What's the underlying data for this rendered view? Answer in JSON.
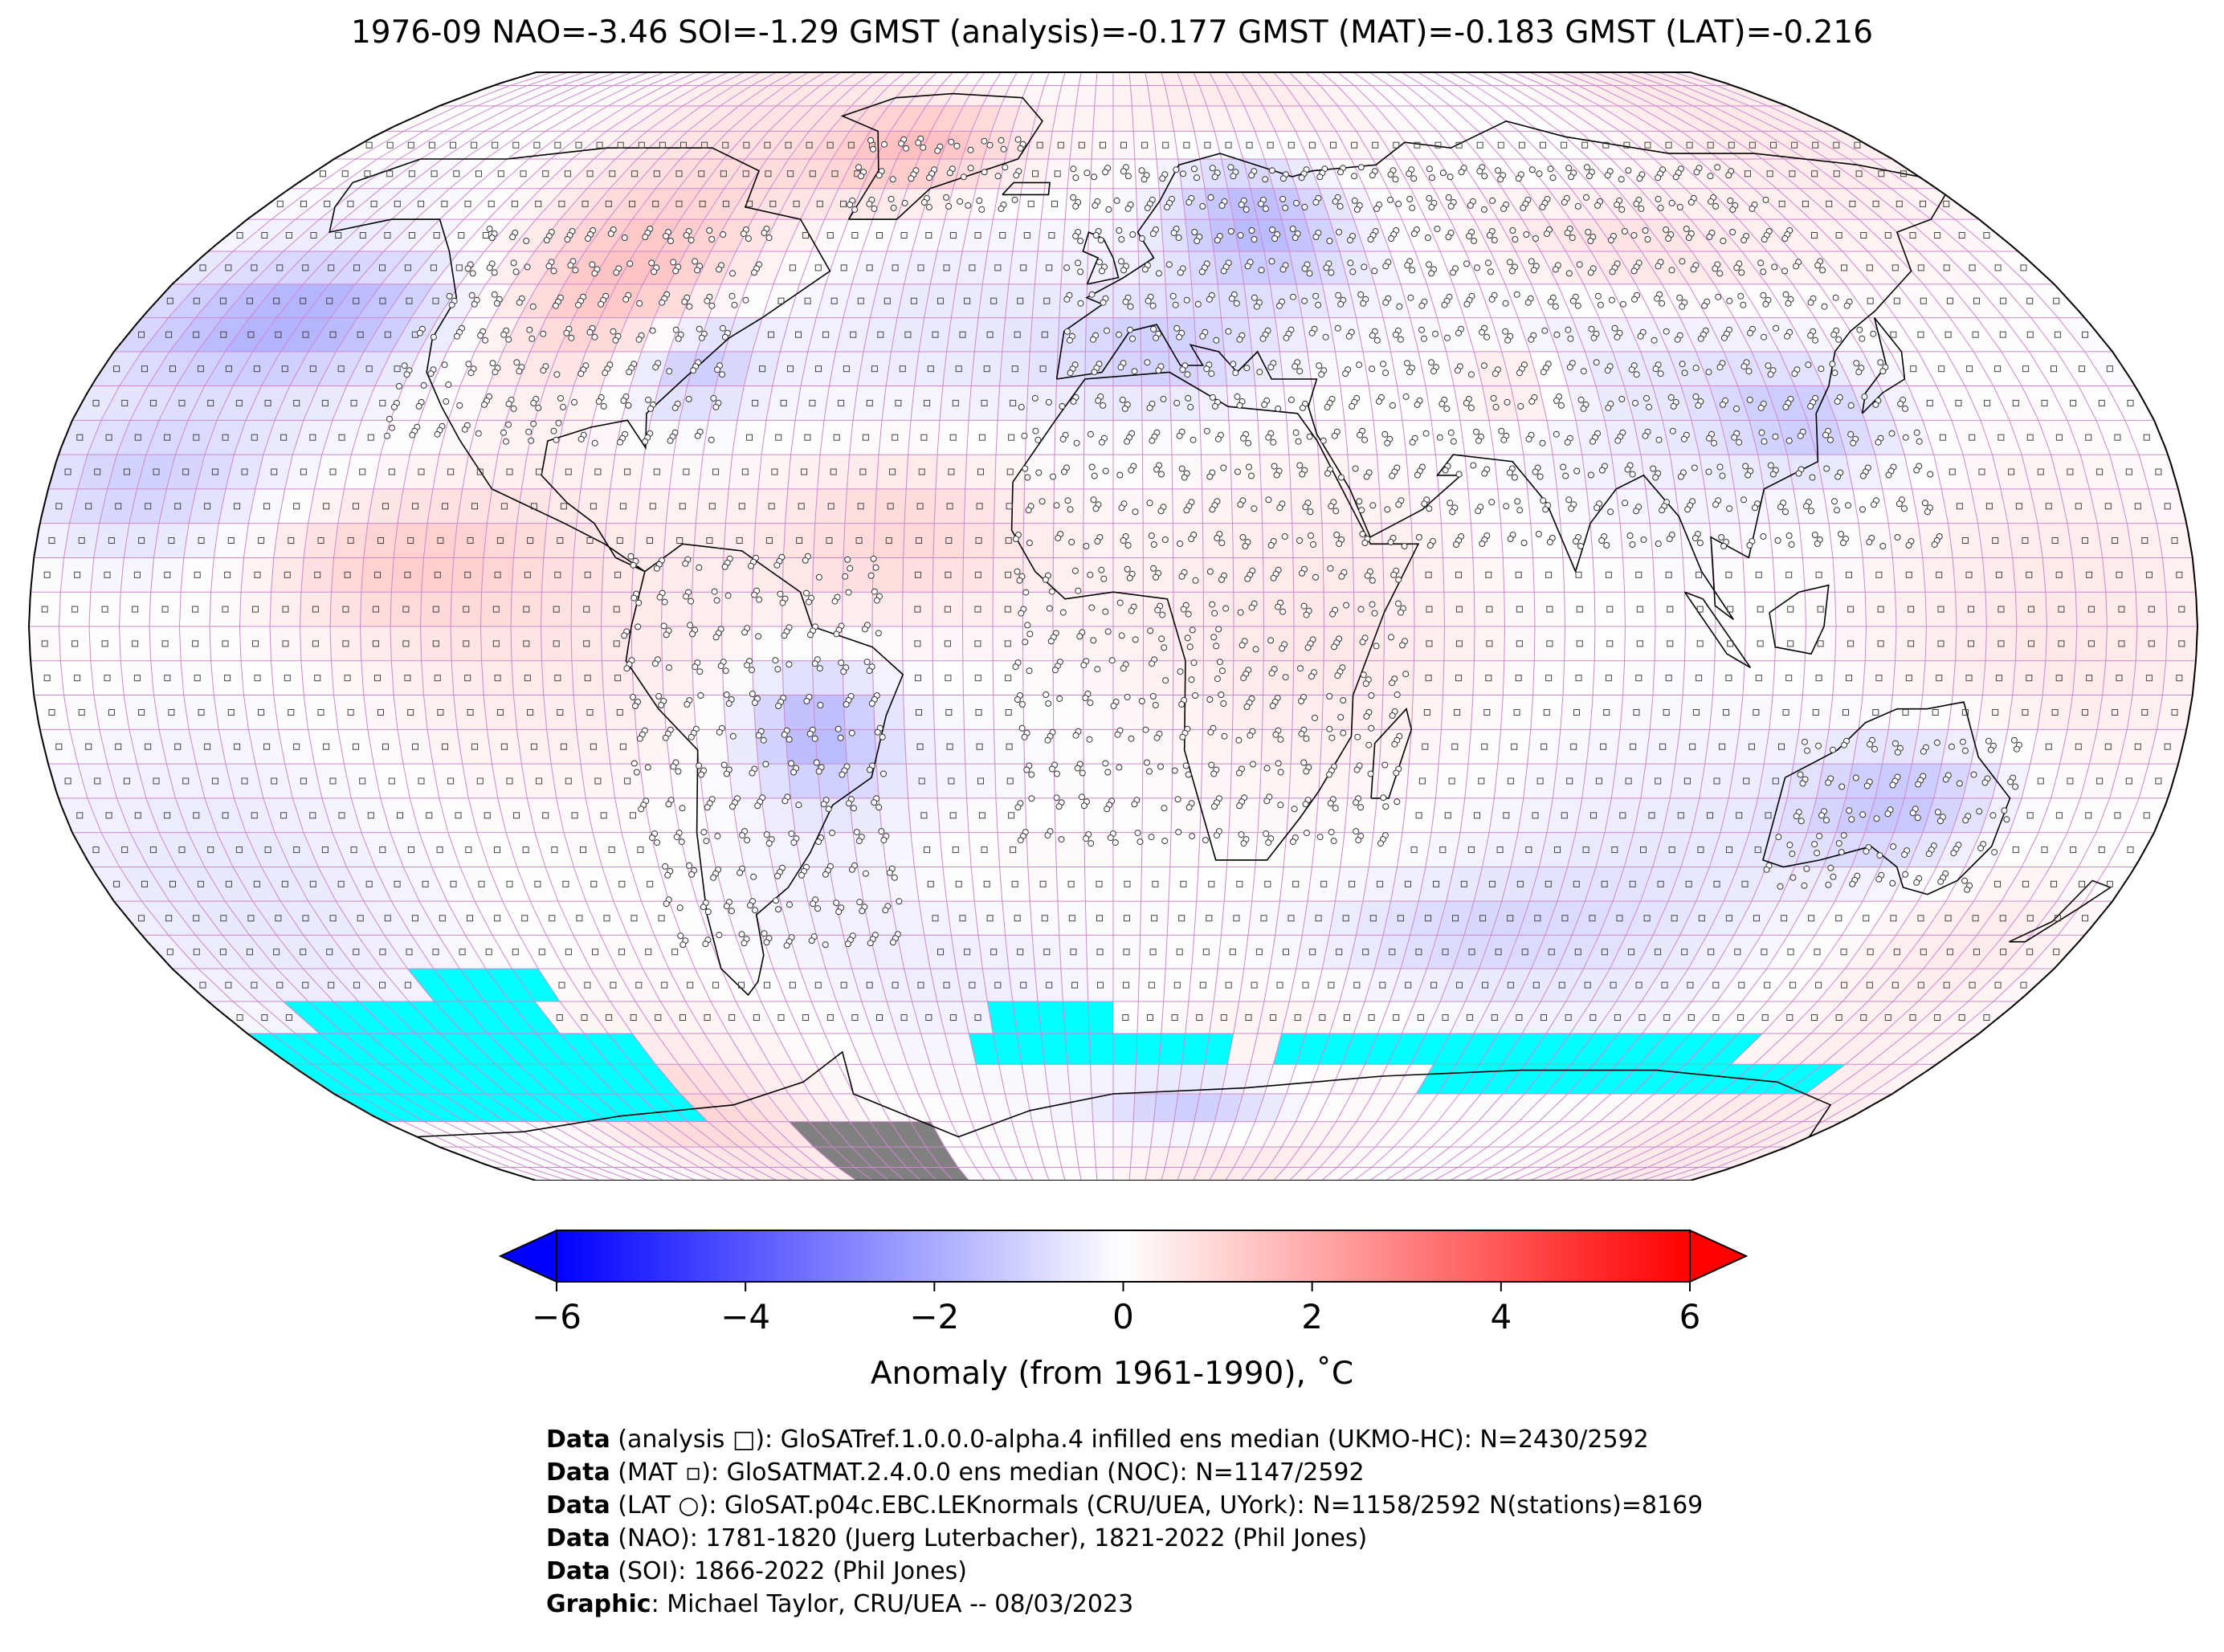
{
  "title": "1976-09 NAO=-3.46 SOI=-1.29 GMST (analysis)=-0.177 GMST (MAT)=-0.183 GMST (LAT)=-0.216",
  "colorbar": {
    "ticks": [
      "−6",
      "−4",
      "−2",
      "0",
      "2",
      "4",
      "6"
    ],
    "tick_values": [
      -6,
      -4,
      -2,
      0,
      2,
      4,
      6
    ],
    "label": "Anomaly (from 1961-1990), ˚C",
    "min_color": "#0000ff",
    "mid_color": "#ffffff",
    "max_color": "#ff0000"
  },
  "map": {
    "projection": "Robinson",
    "missing_data_color": "#00ffff",
    "no_data_land_color": "#808080",
    "grid_line_color": "#cc88cc"
  },
  "credits": [
    {
      "bold": "Data",
      "text": " (analysis □): GloSATref.1.0.0.0-alpha.4 infilled ens median (UKMO-HC): N=2430/2592"
    },
    {
      "bold": "Data",
      "text": " (MAT ▫): GloSATMAT.2.4.0.0 ens median (NOC): N=1147/2592"
    },
    {
      "bold": "Data",
      "text": " (LAT ○): GloSAT.p04c.EBC.LEKnormals (CRU/UEA, UYork): N=1158/2592 N(stations)=8169"
    },
    {
      "bold": "Data",
      "text": " (NAO): 1781-1820 (Juerg Luterbacher), 1821-2022 (Phil Jones)"
    },
    {
      "bold": "Data",
      "text": " (SOI): 1866-2022 (Phil Jones)"
    },
    {
      "bold": "Graphic",
      "text": ": Michael Taylor, CRU/UEA -- 08/03/2023"
    }
  ]
}
